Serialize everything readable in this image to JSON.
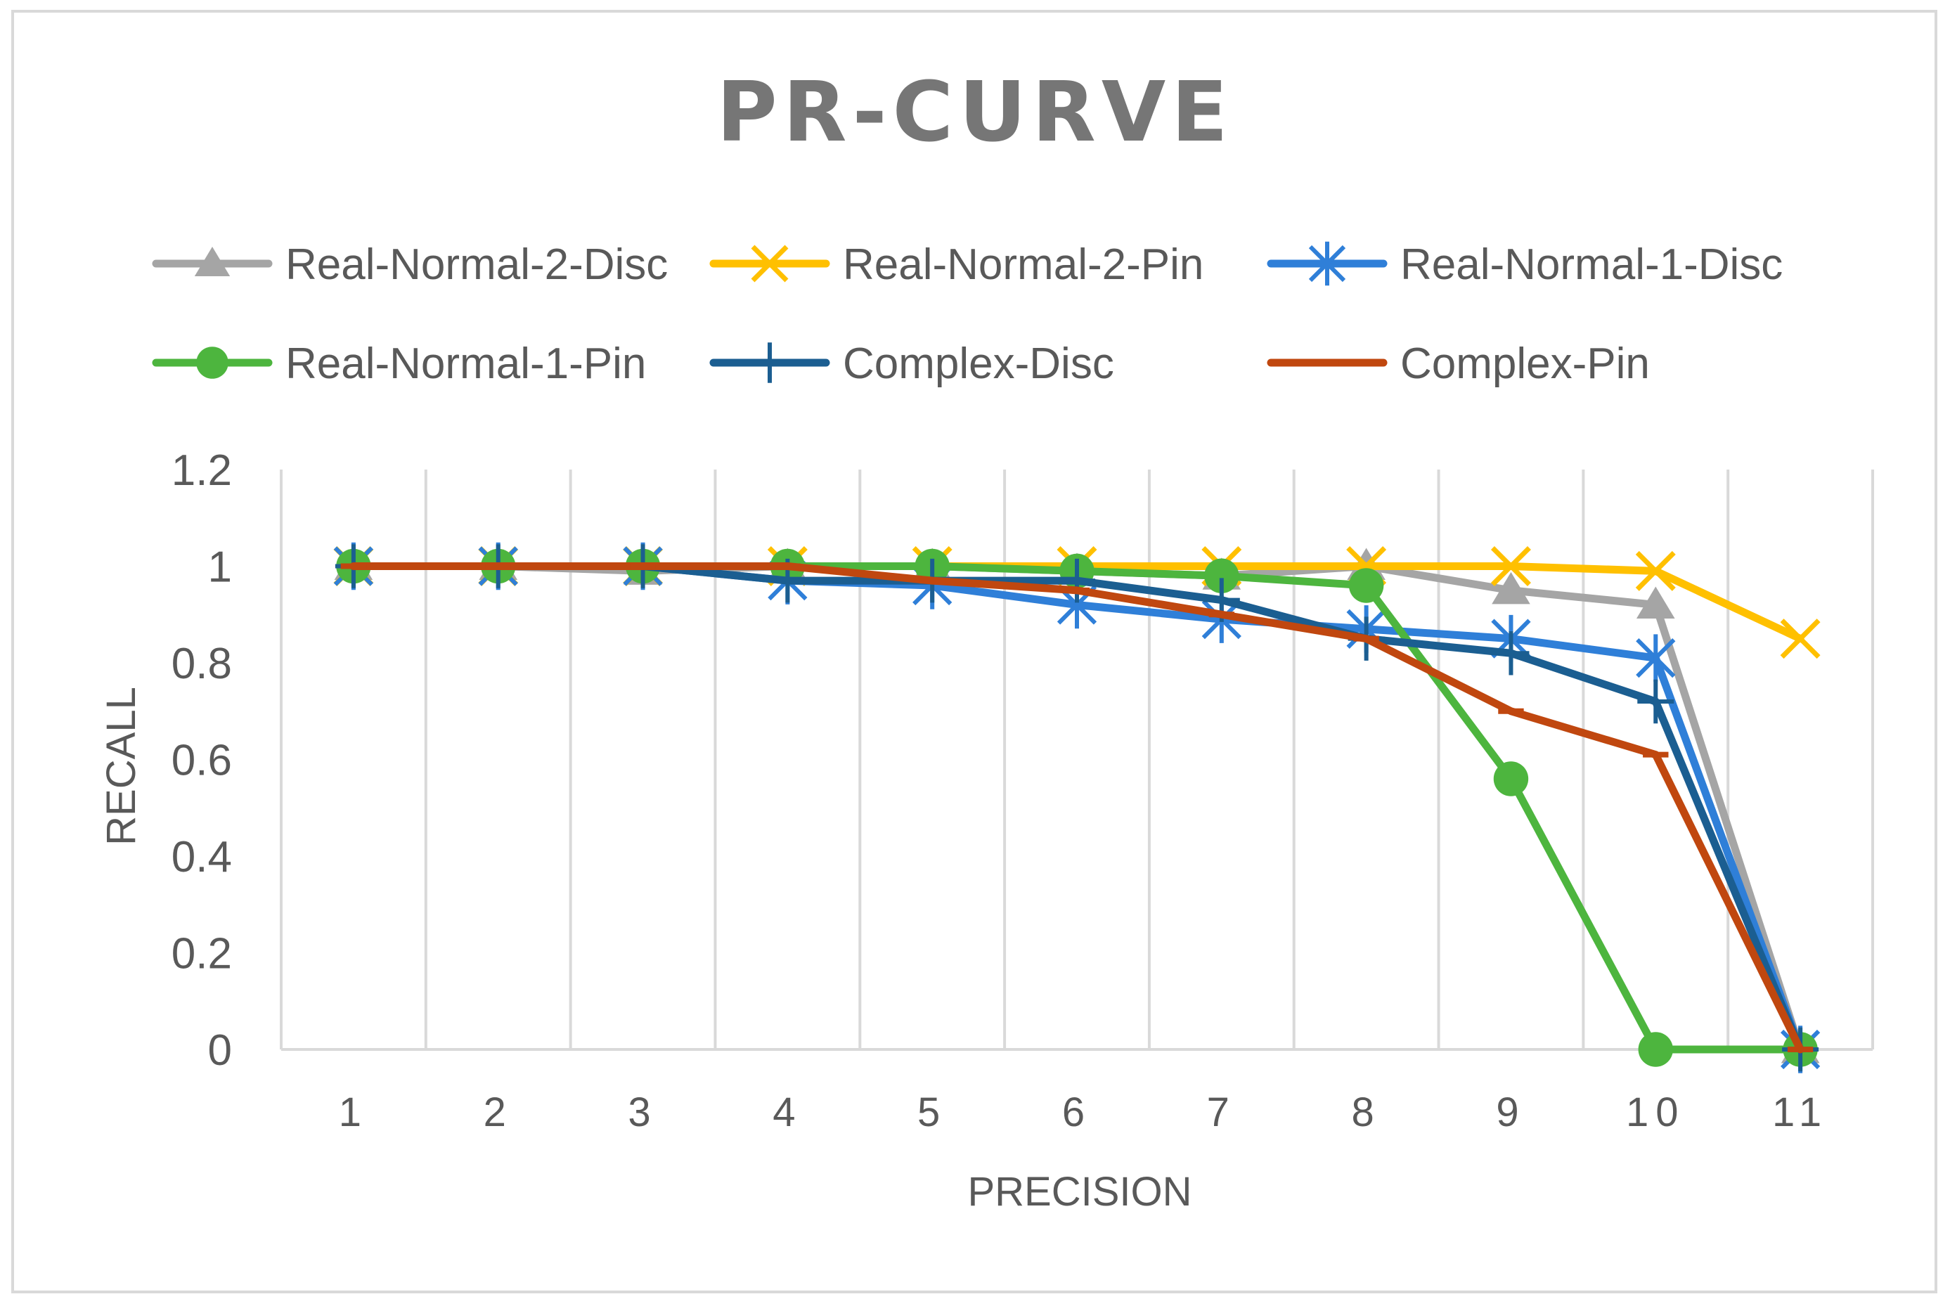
{
  "chart_data": {
    "type": "line",
    "title": "PR-CURVE",
    "xlabel": "PRECISION",
    "ylabel": "RECALL",
    "categories": [
      "1",
      "2",
      "3",
      "4",
      "5",
      "6",
      "7",
      "8",
      "9",
      "10",
      "11"
    ],
    "yticks": [
      "0",
      "0.2",
      "0.4",
      "0.6",
      "0.8",
      "1",
      "1.2"
    ],
    "ylim": [
      0,
      1.2
    ],
    "grid": "vertical",
    "legend_position": "top",
    "series": [
      {
        "name": "Real-Normal-2-Disc",
        "color": "#a5a5a5",
        "marker": "triangle",
        "values": [
          1,
          1,
          0.99,
          1,
          1,
          0.99,
          0.98,
          1,
          0.95,
          0.92,
          0
        ]
      },
      {
        "name": "Real-Normal-2-Pin",
        "color": "#ffc000",
        "marker": "x",
        "values": [
          1,
          1,
          1,
          1,
          1,
          1,
          1,
          1,
          1,
          0.99,
          0.85
        ]
      },
      {
        "name": "Real-Normal-1-Disc",
        "color": "#2f7fd8",
        "marker": "asterisk",
        "values": [
          1,
          1,
          1,
          0.97,
          0.96,
          0.92,
          0.89,
          0.87,
          0.85,
          0.81,
          0
        ]
      },
      {
        "name": "Real-Normal-1-Pin",
        "color": "#4db53e",
        "marker": "circle",
        "values": [
          1,
          1,
          1,
          1,
          1,
          0.99,
          0.98,
          0.96,
          0.56,
          0,
          0
        ]
      },
      {
        "name": "Complex-Disc",
        "color": "#1b5e91",
        "marker": "plus",
        "values": [
          1,
          1,
          1,
          0.97,
          0.97,
          0.97,
          0.93,
          0.85,
          0.82,
          0.72,
          0
        ]
      },
      {
        "name": "Complex-Pin",
        "color": "#c0470f",
        "marker": "dash",
        "values": [
          1,
          1,
          1,
          1,
          0.97,
          0.95,
          0.9,
          0.85,
          0.7,
          0.61,
          0
        ]
      }
    ]
  }
}
